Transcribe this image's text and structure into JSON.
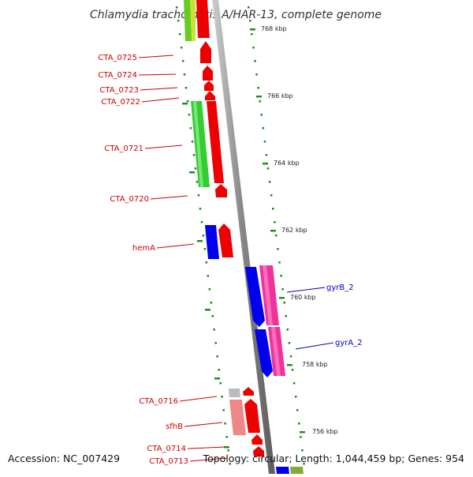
{
  "header": {
    "title": "Chlamydia trachomatis A/HAR-13, complete genome"
  },
  "footer": {
    "accession": "Accession: NC_007429",
    "summary": "Topology: circular; Length: 1,044,459 bp; Genes: 954"
  },
  "colors": {
    "forward_label": "#cc0000",
    "reverse_label": "#0000bb",
    "tick": "#1a8a1a",
    "backbone": "#888888",
    "gene_red": "#ee0000",
    "gene_green": "#33cc33",
    "gene_blue": "#0000ee",
    "gene_pink": "#ee3399",
    "gene_lightred": "#ee8888",
    "gene_gray": "#bbbbbb"
  },
  "scale_labels": [
    "768 kbp",
    "766 kbp",
    "764 kbp",
    "762 kbp",
    "760 kbp",
    "758 kbp",
    "756 kbp"
  ],
  "gene_labels": [
    {
      "name": "CTA_0725",
      "strand": "forward"
    },
    {
      "name": "CTA_0724",
      "strand": "forward"
    },
    {
      "name": "CTA_0723",
      "strand": "forward"
    },
    {
      "name": "CTA_0722",
      "strand": "forward"
    },
    {
      "name": "CTA_0721",
      "strand": "forward"
    },
    {
      "name": "CTA_0720",
      "strand": "forward"
    },
    {
      "name": "hemA",
      "strand": "forward"
    },
    {
      "name": "gyrB_2",
      "strand": "reverse"
    },
    {
      "name": "gyrA_2",
      "strand": "reverse"
    },
    {
      "name": "CTA_0716",
      "strand": "forward"
    },
    {
      "name": "sfhB",
      "strand": "forward"
    },
    {
      "name": "CTA_0714",
      "strand": "forward"
    },
    {
      "name": "CTA_0713",
      "strand": "forward"
    }
  ]
}
